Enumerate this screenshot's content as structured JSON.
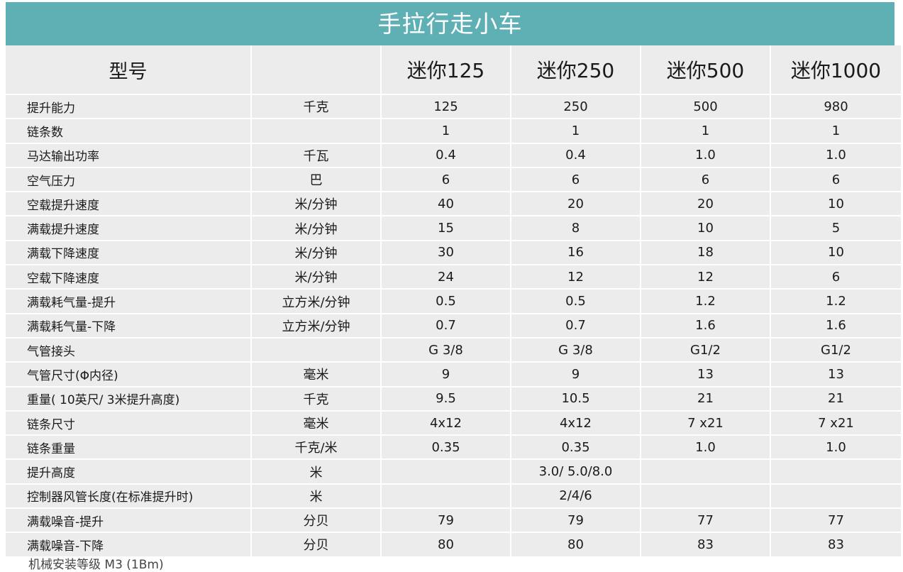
{
  "title": "手拉行走小车",
  "header": [
    "型号",
    "",
    "迷你125",
    "迷你250",
    "迷你500",
    "迷你1000"
  ],
  "rows": [
    {
      "name": "提升能力",
      "unit": "千克",
      "v": [
        "125",
        "250",
        "500",
        "980"
      ]
    },
    {
      "name": "链条数",
      "unit": "",
      "v": [
        "1",
        "1",
        "1",
        "1"
      ]
    },
    {
      "name": "马达输出功率",
      "unit": "千瓦",
      "v": [
        "0.4",
        "0.4",
        "1.0",
        "1.0"
      ]
    },
    {
      "name": "空气压力",
      "unit": "巴",
      "v": [
        "6",
        "6",
        "6",
        "6"
      ]
    },
    {
      "name": "空载提升速度",
      "unit": "米/分钟",
      "v": [
        "40",
        "20",
        "20",
        "10"
      ]
    },
    {
      "name": "满载提升速度",
      "unit": "米/分钟",
      "v": [
        "15",
        "8",
        "10",
        "5"
      ]
    },
    {
      "name": "满载下降速度",
      "unit": "米/分钟",
      "v": [
        "30",
        "16",
        "18",
        "10"
      ]
    },
    {
      "name": "空载下降速度",
      "unit": "米/分钟",
      "v": [
        "24",
        "12",
        "12",
        "6"
      ]
    },
    {
      "name": "满载耗气量-提升",
      "unit": "立方米/分钟",
      "v": [
        "0.5",
        "0.5",
        "1.2",
        "1.2"
      ]
    },
    {
      "name": "满载耗气量-下降",
      "unit": "立方米/分钟",
      "v": [
        "0.7",
        "0.7",
        "1.6",
        "1.6"
      ]
    },
    {
      "name": "气管接头",
      "unit": "",
      "v": [
        "G 3/8",
        "G 3/8",
        "G1/2",
        "G1/2"
      ]
    },
    {
      "name": "气管尺寸(Φ内径)",
      "unit": "毫米",
      "v": [
        "9",
        "9",
        "13",
        "13"
      ]
    },
    {
      "name": "重量( 10英尺/ 3米提升高度)",
      "unit": "千克",
      "v": [
        "9.5",
        "10.5",
        "21",
        "21"
      ]
    },
    {
      "name": "链条尺寸",
      "unit": "毫米",
      "v": [
        "4x12",
        "4x12",
        "7 x21",
        "7 x21"
      ]
    },
    {
      "name": "链条重量",
      "unit": "千克/米",
      "v": [
        "0.35",
        "0.35",
        "1.0",
        "1.0"
      ]
    },
    {
      "name": "提升高度",
      "unit": "米",
      "v": [
        "",
        "3.0/ 5.0/8.0",
        "",
        ""
      ]
    },
    {
      "name": "控制器风管长度(在标准提升时)",
      "unit": "米",
      "v": [
        "",
        "2/4/6",
        "",
        ""
      ]
    },
    {
      "name": "满载噪音-提升",
      "unit": "分贝",
      "v": [
        "79",
        "79",
        "77",
        "77"
      ]
    },
    {
      "name": "满载噪音-下降",
      "unit": "分贝",
      "v": [
        "80",
        "80",
        "83",
        "83"
      ]
    }
  ],
  "footnote": "机械安装等级 M3 (1Bm)"
}
